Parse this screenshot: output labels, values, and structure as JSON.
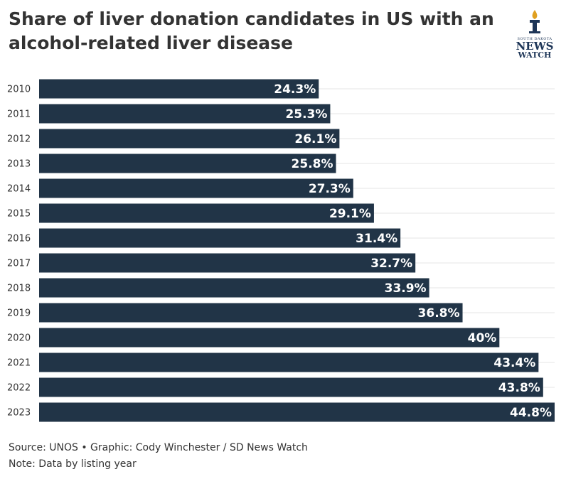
{
  "chart_data": {
    "type": "bar",
    "orientation": "horizontal",
    "title": "Share of liver donation candidates in US with an alcohol-related liver disease",
    "categories": [
      "2010",
      "2011",
      "2012",
      "2013",
      "2014",
      "2015",
      "2016",
      "2017",
      "2018",
      "2019",
      "2020",
      "2021",
      "2022",
      "2023"
    ],
    "values": [
      24.3,
      25.3,
      26.1,
      25.8,
      27.3,
      29.1,
      31.4,
      32.7,
      33.9,
      36.8,
      40,
      43.4,
      43.8,
      44.8
    ],
    "value_labels": [
      "24.3%",
      "25.3%",
      "26.1%",
      "25.8%",
      "27.3%",
      "29.1%",
      "31.4%",
      "32.7%",
      "33.9%",
      "36.8%",
      "40%",
      "43.4%",
      "43.8%",
      "44.8%"
    ],
    "color": "#213447",
    "source": "Source: UNOS • Graphic: Cody Winchester / SD News Watch",
    "note": "Note: Data by listing year"
  },
  "logo": {
    "top": "SOUTH DAKOTA",
    "line1": "NEWS",
    "line2": "WATCH"
  }
}
